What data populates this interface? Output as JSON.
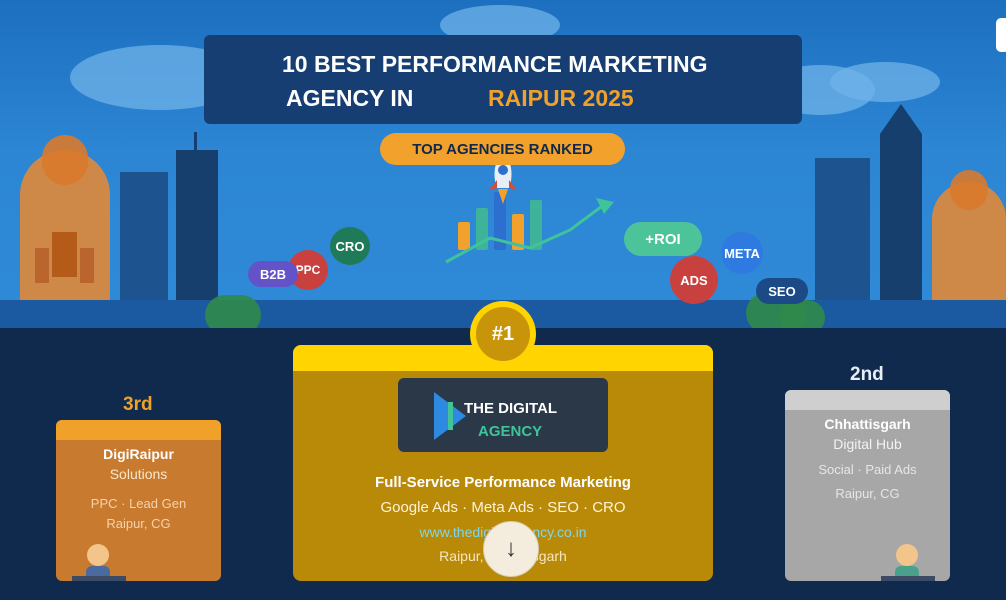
{
  "header": {
    "title_line1": "10 BEST PERFORMANCE MARKETING",
    "title_line2_prefix": "AGENCY IN",
    "title_line2_accent": "RAIPUR 2025",
    "pill": "TOP AGENCIES RANKED"
  },
  "tags": {
    "b2b": "B2B",
    "ppc": "PPC",
    "cro": "CRO",
    "roi": "+ROI",
    "ads": "ADS",
    "meta": "META",
    "seo": "SEO"
  },
  "badge": "#1",
  "winner": {
    "logo_line1": "THE DIGITAL",
    "logo_line2": "AGENCY",
    "headline": "Full-Service Performance Marketing",
    "services": "Google Ads · Meta Ads · SEO · CRO",
    "url": "www.thedigitalagency.co.in",
    "location": "Raipur, Chhattisgarh"
  },
  "third": {
    "rank": "3rd",
    "name_line1": "DigiRaipur",
    "name_line2": "Solutions",
    "services": "PPC · Lead Gen",
    "location": "Raipur, CG"
  },
  "second": {
    "rank": "2nd",
    "name_line1": "Chhattisgarh",
    "name_line2": "Digital Hub",
    "services": "Social · Paid Ads",
    "location": "Raipur, CG"
  },
  "scroll_button": "↓",
  "colors": {
    "accent_orange": "#f0a12a",
    "gold": "#ffd400",
    "navy": "#0f2a4d"
  }
}
